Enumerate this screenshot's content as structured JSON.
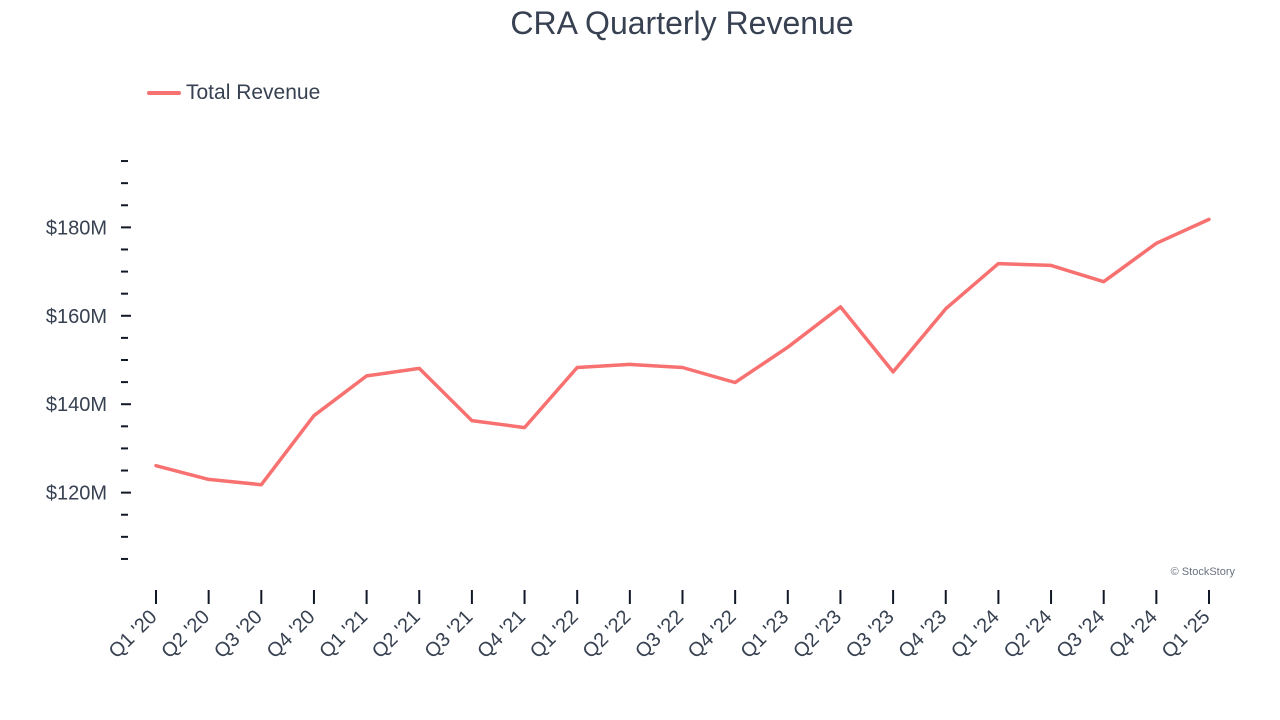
{
  "chart_data": {
    "type": "line",
    "title": "CRA Quarterly Revenue",
    "xlabel": "",
    "ylabel": "",
    "categories": [
      "Q1 '20",
      "Q2 '20",
      "Q3 '20",
      "Q4 '20",
      "Q1 '21",
      "Q2 '21",
      "Q3 '21",
      "Q4 '21",
      "Q1 '22",
      "Q2 '22",
      "Q3 '22",
      "Q4 '22",
      "Q1 '23",
      "Q2 '23",
      "Q3 '23",
      "Q4 '23",
      "Q1 '24",
      "Q2 '24",
      "Q3 '24",
      "Q4 '24",
      "Q1 '25"
    ],
    "series": [
      {
        "name": "Total Revenue",
        "color": "#f87171",
        "values": [
          126.1,
          123.0,
          121.8,
          137.4,
          146.4,
          148.1,
          136.3,
          134.7,
          148.3,
          149.0,
          148.3,
          144.9,
          152.9,
          162.0,
          147.3,
          161.6,
          171.8,
          171.4,
          167.7,
          176.4,
          181.8
        ]
      }
    ],
    "ylim": [
      102.5,
      197.5
    ],
    "yticks_major": [
      120,
      140,
      160,
      180
    ],
    "ytick_labels": [
      "$120M",
      "$140M",
      "$160M",
      "$180M"
    ],
    "ytick_minor_step": 5,
    "legend_position": "top-left",
    "grid": false,
    "watermark": "© StockStory"
  }
}
